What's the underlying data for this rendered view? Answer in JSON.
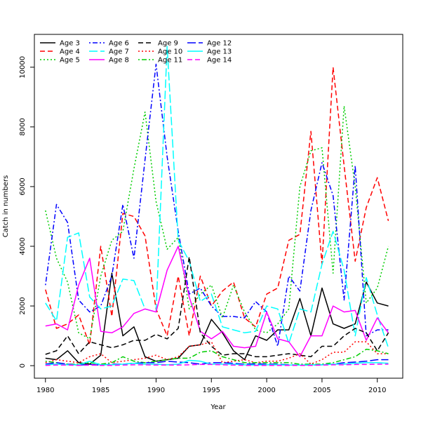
{
  "chart_data": {
    "type": "line",
    "title": "",
    "xlabel": "Year",
    "ylabel": "Catch in numbers",
    "xlim": [
      1979,
      2012.3
    ],
    "ylim": [
      -420,
      11100
    ],
    "xticks": [
      1980,
      1985,
      1990,
      1995,
      2000,
      2005,
      2010
    ],
    "yticks": [
      0,
      2000,
      4000,
      6000,
      8000,
      10000
    ],
    "grid": false,
    "legend_position": "top-left",
    "x": [
      1980,
      1981,
      1982,
      1983,
      1984,
      1985,
      1986,
      1987,
      1988,
      1989,
      1990,
      1991,
      1992,
      1993,
      1994,
      1995,
      1996,
      1997,
      1998,
      1999,
      2000,
      2001,
      2002,
      2003,
      2004,
      2005,
      2006,
      2007,
      2008,
      2009,
      2010,
      2011
    ],
    "series": [
      {
        "name": "Age 3",
        "color": "#000000",
        "dash": "solid",
        "values": [
          250,
          200,
          500,
          100,
          50,
          350,
          3100,
          1000,
          1300,
          300,
          150,
          200,
          250,
          650,
          700,
          1550,
          1100,
          500,
          200,
          1000,
          850,
          1200,
          1200,
          2250,
          1000,
          2600,
          1400,
          1250,
          1400,
          2800,
          2100,
          2000
        ]
      },
      {
        "name": "Age 4",
        "color": "#ff0000",
        "dash": "dashed",
        "values": [
          2550,
          1250,
          1400,
          1700,
          700,
          4000,
          1650,
          5100,
          5000,
          4350,
          1900,
          1000,
          3000,
          1000,
          3000,
          2000,
          2500,
          2800,
          1600,
          1300,
          2400,
          2600,
          4200,
          4400,
          7850,
          3400,
          10000,
          6700,
          3500,
          5300,
          6300,
          4850
        ]
      },
      {
        "name": "Age 5",
        "color": "#00cd00",
        "dash": "dotted",
        "values": [
          5200,
          3600,
          2800,
          1100,
          900,
          3000,
          4200,
          4500,
          6600,
          8500,
          5500,
          3900,
          4300,
          1900,
          2400,
          2700,
          1600,
          2700,
          1800,
          1200,
          1100,
          1400,
          1900,
          6000,
          7200,
          7300,
          3100,
          8700,
          6000,
          2100,
          2600,
          4000
        ]
      },
      {
        "name": "Age 6",
        "color": "#0000ff",
        "dash": "dotdash",
        "values": [
          2700,
          5400,
          4800,
          2200,
          1800,
          2000,
          3000,
          5400,
          3600,
          6900,
          10100,
          7000,
          4500,
          2400,
          2600,
          2000,
          1650,
          1650,
          1600,
          2150,
          1800,
          650,
          3000,
          2500,
          5200,
          6800,
          5700,
          2200,
          6700,
          1000,
          1200,
          1200
        ]
      },
      {
        "name": "Age 7",
        "color": "#00ffff",
        "dash": "longdash",
        "values": [
          2100,
          1500,
          4300,
          4450,
          2300,
          1900,
          2000,
          2900,
          2850,
          1900,
          1800,
          10700,
          4200,
          3500,
          2150,
          2400,
          1300,
          1200,
          1100,
          1150,
          2000,
          1900,
          750,
          1900,
          1800,
          3400,
          4500,
          3200,
          1000,
          2950,
          1700,
          600
        ]
      },
      {
        "name": "Age 8",
        "color": "#ff00ff",
        "dash": "solid",
        "values": [
          1330,
          1400,
          1200,
          2700,
          3600,
          1150,
          1100,
          1300,
          1750,
          1900,
          1800,
          3200,
          4000,
          2300,
          1150,
          900,
          1150,
          650,
          600,
          650,
          1800,
          900,
          800,
          300,
          1000,
          1000,
          2000,
          1800,
          1850,
          850,
          1600,
          1100
        ]
      },
      {
        "name": "Age 9",
        "color": "#000000",
        "dash": "dashed",
        "values": [
          380,
          500,
          1000,
          400,
          800,
          700,
          600,
          700,
          850,
          850,
          1050,
          900,
          1250,
          3650,
          1100,
          650,
          350,
          400,
          400,
          300,
          300,
          350,
          400,
          350,
          300,
          650,
          650,
          1000,
          1250,
          1100,
          500,
          1100
        ]
      },
      {
        "name": "Age 10",
        "color": "#ff0000",
        "dash": "dotted",
        "values": [
          100,
          200,
          150,
          100,
          300,
          400,
          100,
          150,
          200,
          250,
          350,
          200,
          300,
          650,
          700,
          800,
          100,
          150,
          200,
          100,
          150,
          150,
          250,
          400,
          50,
          200,
          450,
          450,
          800,
          800,
          400,
          400
        ]
      },
      {
        "name": "Age 11",
        "color": "#00cd00",
        "dash": "dotdash",
        "values": [
          150,
          100,
          50,
          50,
          100,
          50,
          100,
          300,
          150,
          100,
          150,
          200,
          250,
          250,
          450,
          500,
          300,
          200,
          100,
          100,
          100,
          100,
          100,
          50,
          50,
          50,
          100,
          200,
          300,
          550,
          500,
          400
        ]
      },
      {
        "name": "Age 12",
        "color": "#0000ff",
        "dash": "longdash",
        "values": [
          50,
          100,
          50,
          20,
          40,
          20,
          50,
          50,
          80,
          100,
          100,
          150,
          120,
          100,
          50,
          100,
          100,
          80,
          50,
          60,
          50,
          50,
          30,
          20,
          20,
          30,
          50,
          100,
          120,
          150,
          200,
          200
        ]
      },
      {
        "name": "Age 13",
        "color": "#00ffff",
        "dash": "solid",
        "values": [
          30,
          50,
          30,
          30,
          150,
          30,
          30,
          50,
          80,
          50,
          50,
          30,
          50,
          180,
          150,
          50,
          50,
          50,
          30,
          20,
          30,
          30,
          20,
          20,
          30,
          30,
          50,
          50,
          80,
          100,
          100,
          80
        ]
      },
      {
        "name": "Age 14",
        "color": "#ff00ff",
        "dash": "dashed",
        "values": [
          10,
          20,
          20,
          10,
          20,
          10,
          10,
          20,
          30,
          30,
          20,
          20,
          20,
          30,
          40,
          40,
          30,
          20,
          10,
          10,
          10,
          10,
          10,
          10,
          10,
          20,
          30,
          30,
          40,
          40,
          50,
          50
        ]
      }
    ]
  }
}
